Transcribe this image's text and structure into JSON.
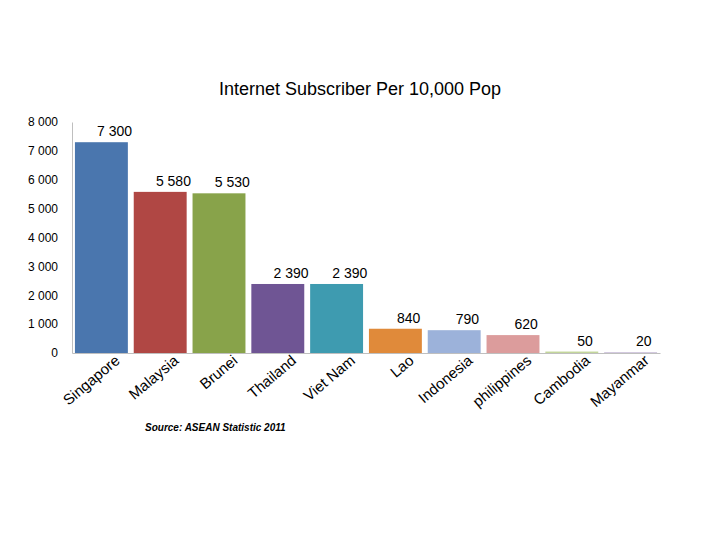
{
  "chart_data": {
    "type": "bar",
    "title": "Internet Subscriber Per 10,000 Pop",
    "categories": [
      "Singapore",
      "Malaysia",
      "Brunei",
      "Thailand",
      "Viet Nam",
      "Lao",
      "Indonesia",
      "philippines",
      "Cambodia",
      "Mayanmar"
    ],
    "values": [
      7300,
      5580,
      5530,
      2390,
      2390,
      840,
      790,
      620,
      50,
      20
    ],
    "value_labels": [
      "7 300",
      "5 580",
      "5 530",
      "2 390",
      "2 390",
      "840",
      "790",
      "620",
      "50",
      "20"
    ],
    "colors": [
      "#4a76ae",
      "#b04744",
      "#88a34a",
      "#6f5594",
      "#3e9bb0",
      "#e08a3a",
      "#9cb2da",
      "#dc9c9c",
      "#c3d69b",
      "#b3a2c7"
    ],
    "ylim": [
      0,
      8000
    ],
    "yticks": [
      0,
      {
        "value": 1000,
        "label": "1 000"
      },
      {
        "value": 2000,
        "label": "2 000"
      },
      {
        "value": 3000,
        "label": "3 000"
      },
      {
        "value": 4000,
        "label": "4 000"
      },
      {
        "value": 5000,
        "label": "5 000"
      },
      {
        "value": 6000,
        "label": "6 000"
      },
      {
        "value": 7000,
        "label": "7 000"
      },
      {
        "value": 8000,
        "label": "8 000"
      }
    ],
    "grid": false,
    "data_labels": true,
    "annotations": [
      "Source: ASEAN Statistic 2011"
    ]
  }
}
